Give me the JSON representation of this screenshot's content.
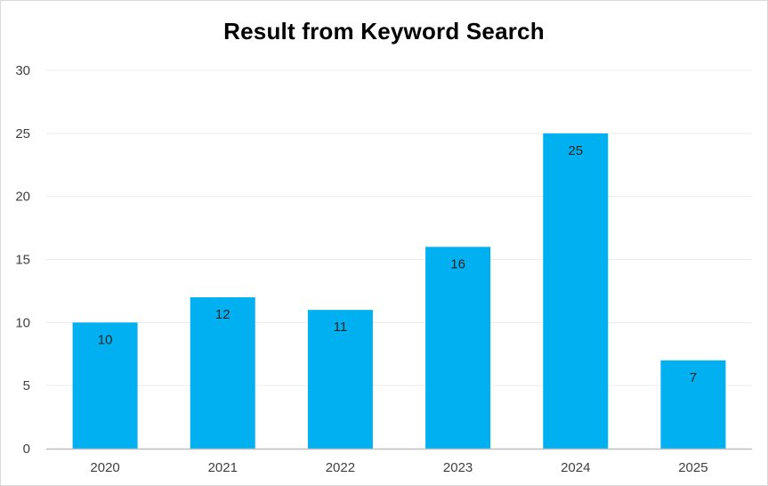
{
  "chart_data": {
    "type": "bar",
    "title": "Result from Keyword Search",
    "xlabel": "",
    "ylabel": "",
    "categories": [
      "2020",
      "2021",
      "2022",
      "2023",
      "2024",
      "2025"
    ],
    "values": [
      10,
      12,
      11,
      16,
      25,
      7
    ],
    "ylim": [
      0,
      30
    ],
    "yticks": [
      0,
      5,
      10,
      15,
      20,
      25,
      30
    ],
    "grid": true,
    "data_labels": true,
    "legend": "none",
    "bar_color": "#00b0f0",
    "gridline_color": "#ececec",
    "axis_color": "#bfbfbf"
  }
}
